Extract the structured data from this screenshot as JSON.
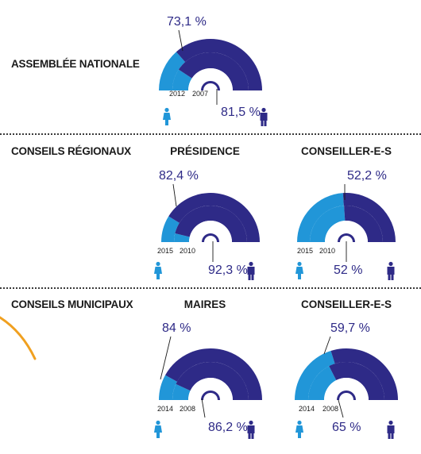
{
  "colors": {
    "men": "#2e2a87",
    "women": "#2196d8",
    "accent": "#f0a020",
    "text": "#1a1a1a"
  },
  "sections": {
    "assemblee": "ASSEMBLÉE NATIONALE",
    "regionaux": "CONSEILS RÉGIONAUX",
    "municipaux": "CONSEILS MUNICIPAUX"
  },
  "columns": {
    "presidence": "PRÉSIDENCE",
    "conseillers_r": "CONSEILLER-E-S",
    "maires": "MAIRES",
    "conseillers_m": "CONSEILLER-E-S"
  },
  "icons": {
    "women": "woman-icon",
    "men": "man-icon"
  },
  "chart_data": [
    {
      "type": "pie",
      "section": "ASSEMBLÉE NATIONALE",
      "title": "",
      "outer": {
        "year": "2012",
        "men_label": "73,1 %",
        "men_value": 73.1
      },
      "inner": {
        "year": "2007",
        "men_label": "81,5 %",
        "men_value": 81.5
      }
    },
    {
      "type": "pie",
      "section": "CONSEILS RÉGIONAUX",
      "title": "PRÉSIDENCE",
      "outer": {
        "year": "2015",
        "men_label": "82,4 %",
        "men_value": 82.4
      },
      "inner": {
        "year": "2010",
        "men_label": "92,3 %",
        "men_value": 92.3
      }
    },
    {
      "type": "pie",
      "section": "CONSEILS RÉGIONAUX",
      "title": "CONSEILLER-E-S",
      "outer": {
        "year": "2015",
        "men_label": "52,2 %",
        "men_value": 52.2
      },
      "inner": {
        "year": "2010",
        "men_label": "52 %",
        "men_value": 52
      }
    },
    {
      "type": "pie",
      "section": "CONSEILS MUNICIPAUX",
      "title": "MAIRES",
      "outer": {
        "year": "2014",
        "men_label": "84 %",
        "men_value": 84
      },
      "inner": {
        "year": "2008",
        "men_label": "86,2 %",
        "men_value": 86.2
      }
    },
    {
      "type": "pie",
      "section": "CONSEILS MUNICIPAUX",
      "title": "CONSEILLER-E-S",
      "outer": {
        "year": "2014",
        "men_label": "59,7 %",
        "men_value": 59.7
      },
      "inner": {
        "year": "2008",
        "men_label": "65 %",
        "men_value": 65
      }
    }
  ]
}
